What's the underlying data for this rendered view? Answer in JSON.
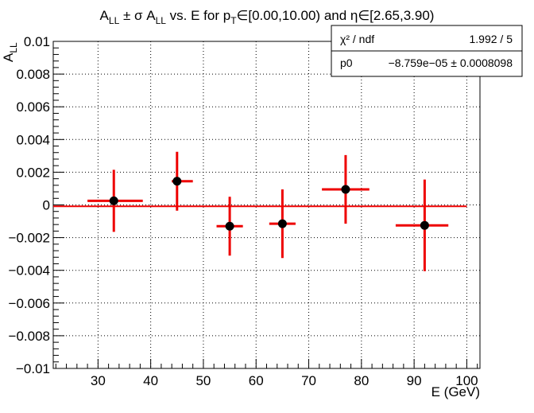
{
  "chart_data": {
    "type": "scatter",
    "title": "A_LL ± σ A_LL vs. E for p_T∈[0.00,10.00) and η∈[2.65,3.90)",
    "xlabel": "E (GeV)",
    "ylabel": "A_LL",
    "xlim": [
      21.5,
      102.5
    ],
    "ylim": [
      -0.01,
      0.01
    ],
    "x_ticks": [
      30,
      40,
      50,
      60,
      70,
      80,
      90,
      100
    ],
    "y_ticks": [
      -0.01,
      -0.008,
      -0.006,
      -0.004,
      -0.002,
      0,
      0.002,
      0.004,
      0.006,
      0.008,
      0.01
    ],
    "y_tick_labels": [
      "−0.01",
      "−0.008",
      "−0.006",
      "−0.004",
      "−0.002",
      "0",
      "0.002",
      "0.004",
      "0.006",
      "0.008",
      "0.01"
    ],
    "grid": true,
    "points": [
      {
        "x": 33.0,
        "y": 0.00025,
        "xerr_low": 5.0,
        "xerr_high": 5.5,
        "yerr": 0.0019
      },
      {
        "x": 45.0,
        "y": 0.00145,
        "xerr_low": 1.0,
        "xerr_high": 3.0,
        "yerr": 0.0018
      },
      {
        "x": 55.0,
        "y": -0.0013,
        "xerr_low": 2.5,
        "xerr_high": 2.5,
        "yerr": 0.0018
      },
      {
        "x": 65.0,
        "y": -0.00115,
        "xerr_low": 2.5,
        "xerr_high": 2.5,
        "yerr": 0.0021
      },
      {
        "x": 77.0,
        "y": 0.00095,
        "xerr_low": 4.5,
        "xerr_high": 4.5,
        "yerr": 0.0021
      },
      {
        "x": 92.0,
        "y": -0.00125,
        "xerr_low": 5.5,
        "xerr_high": 4.5,
        "yerr": 0.0028
      }
    ],
    "fit": {
      "type": "constant",
      "value": -8.759e-05,
      "color": "#ee0000"
    },
    "marker_color": "#000000",
    "error_color": "#ee0000",
    "stats": {
      "chi2_label": "χ² / ndf",
      "chi2_value": "1.992 / 5",
      "p0_label": "p0",
      "p0_value": "−8.759e−05 ± 0.0008098"
    }
  }
}
